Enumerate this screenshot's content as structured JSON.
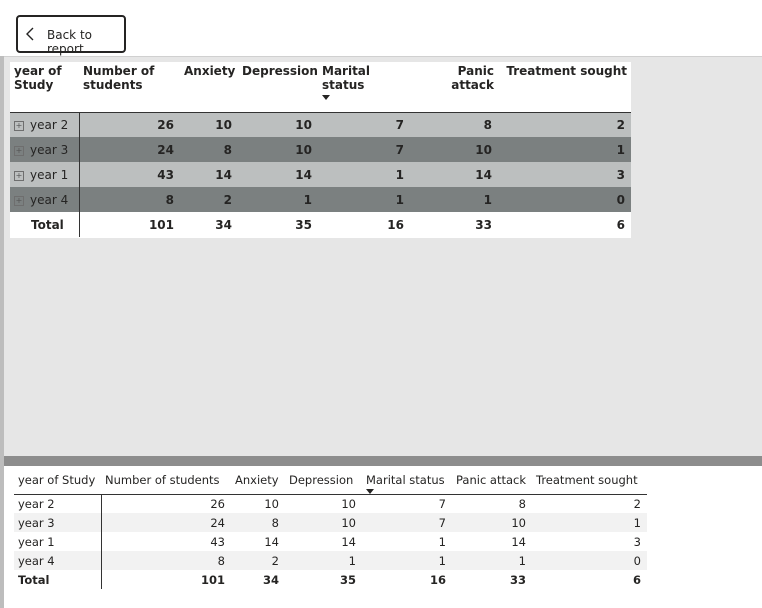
{
  "back_button": {
    "label": "Back to report"
  },
  "top_table": {
    "headers": [
      "year of Study",
      "Number of students",
      "Anxiety",
      "Depression",
      "Marital status",
      "Panic attack",
      "Treatment sought"
    ],
    "rows": [
      [
        "year 2",
        "26",
        "10",
        "10",
        "7",
        "8",
        "2"
      ],
      [
        "year 3",
        "24",
        "8",
        "10",
        "7",
        "10",
        "1"
      ],
      [
        "year 1",
        "43",
        "14",
        "14",
        "1",
        "14",
        "3"
      ],
      [
        "year 4",
        "8",
        "2",
        "1",
        "1",
        "1",
        "0"
      ]
    ],
    "total": [
      "Total",
      "101",
      "34",
      "35",
      "16",
      "33",
      "6"
    ],
    "sorted_column": "Marital status",
    "row_colors": [
      "#bcbfbf",
      "#7b8080"
    ]
  },
  "bottom_table": {
    "headers": [
      "year of Study",
      "Number of students",
      "Anxiety",
      "Depression",
      "Marital status",
      "Panic attack",
      "Treatment sought"
    ],
    "rows": [
      [
        "year 2",
        "26",
        "10",
        "10",
        "7",
        "8",
        "2"
      ],
      [
        "year 3",
        "24",
        "8",
        "10",
        "7",
        "10",
        "1"
      ],
      [
        "year 1",
        "43",
        "14",
        "14",
        "1",
        "14",
        "3"
      ],
      [
        "year 4",
        "8",
        "2",
        "1",
        "1",
        "1",
        "0"
      ]
    ],
    "total": [
      "Total",
      "101",
      "34",
      "35",
      "16",
      "33",
      "6"
    ],
    "sorted_column": "Marital status"
  },
  "colors": {
    "canvas": "#e6e6e6",
    "divider": "#8d8d8d",
    "text": "#252423"
  }
}
